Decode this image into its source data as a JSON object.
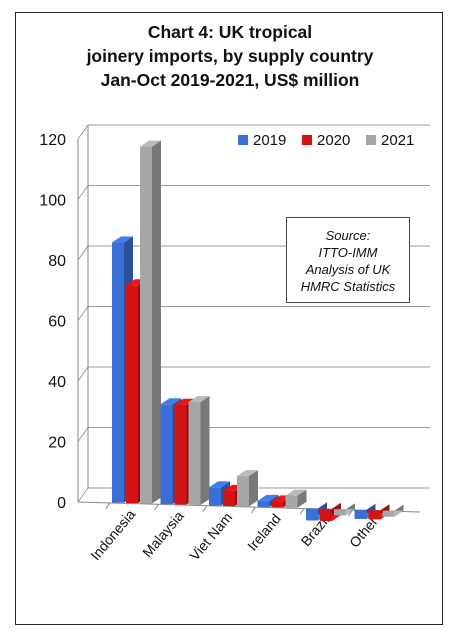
{
  "title_lines": [
    "Chart 4: UK tropical",
    "joinery imports, by supply country",
    "Jan-Oct 2019-2021, US$ million"
  ],
  "source_lines": [
    "Source:",
    "ITTO-IMM",
    "Analysis of UK",
    "HMRC Statistics"
  ],
  "colors": {
    "2019": "#3a6fd6",
    "2020": "#d41313",
    "2021": "#a6a6a6"
  },
  "chart_data": {
    "type": "bar",
    "categories": [
      "Indonesia",
      "Malaysia",
      "Viet Nam",
      "Ireland",
      "Brazil",
      "Other"
    ],
    "series": [
      {
        "name": "2019",
        "values": [
          86,
          33,
          6,
          2,
          -4,
          -3
        ]
      },
      {
        "name": "2020",
        "values": [
          72,
          33,
          5,
          2,
          -4,
          -3
        ]
      },
      {
        "name": "2021",
        "values": [
          118,
          34,
          10,
          4,
          -2,
          -2
        ]
      }
    ],
    "yticks": [
      0,
      20,
      40,
      60,
      80,
      100,
      120
    ],
    "ylim": [
      0,
      120
    ],
    "legend": "top-right",
    "grid": true
  }
}
